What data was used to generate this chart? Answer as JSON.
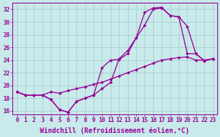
{
  "background_color": "#c8eaea",
  "grid_color": "#aacccc",
  "line_color": "#990099",
  "marker": "D",
  "markersize": 2.5,
  "linewidth": 1.0,
  "xlabel": "Windchill (Refroidissement éolien,°C)",
  "xlabel_fontsize": 7,
  "tick_fontsize": 6,
  "xlim": [
    -0.5,
    23.5
  ],
  "ylim": [
    15.5,
    33.0
  ],
  "yticks": [
    16,
    18,
    20,
    22,
    24,
    26,
    28,
    30,
    32
  ],
  "xticks": [
    0,
    1,
    2,
    3,
    4,
    5,
    6,
    7,
    8,
    9,
    10,
    11,
    12,
    13,
    14,
    15,
    16,
    17,
    18,
    19,
    20,
    21,
    22,
    23
  ],
  "line1_x": [
    0,
    1,
    2,
    3,
    4,
    5,
    6,
    7,
    8,
    9,
    10,
    11,
    12,
    13,
    14,
    15,
    16,
    17,
    18,
    19,
    20,
    21,
    22,
    23
  ],
  "line1_y": [
    19.0,
    18.5,
    18.5,
    18.5,
    19.0,
    18.8,
    19.2,
    19.5,
    19.8,
    20.2,
    20.5,
    21.0,
    21.5,
    22.0,
    22.5,
    23.0,
    23.5,
    24.0,
    24.2,
    24.4,
    24.5,
    24.0,
    24.0,
    24.2
  ],
  "line2_x": [
    0,
    1,
    2,
    3,
    4,
    5,
    6,
    7,
    8,
    9,
    10,
    11,
    12,
    13,
    14,
    15,
    16,
    17,
    18,
    19,
    20,
    21,
    22,
    23
  ],
  "line2_y": [
    19.0,
    18.5,
    18.5,
    18.5,
    17.8,
    16.2,
    15.8,
    17.5,
    18.0,
    18.5,
    19.5,
    20.5,
    24.2,
    25.5,
    27.5,
    29.5,
    32.0,
    32.2,
    31.0,
    30.8,
    25.0,
    25.0,
    23.9,
    24.2
  ],
  "line3_x": [
    0,
    1,
    2,
    3,
    4,
    5,
    6,
    7,
    8,
    9,
    10,
    11,
    12,
    13,
    14,
    15,
    16,
    17,
    18,
    19,
    20,
    21,
    22,
    23
  ],
  "line3_y": [
    19.0,
    18.5,
    18.5,
    18.5,
    17.8,
    16.2,
    15.8,
    17.5,
    18.0,
    18.5,
    22.8,
    24.0,
    24.1,
    25.0,
    27.5,
    31.5,
    32.2,
    32.3,
    31.0,
    30.8,
    29.3,
    25.0,
    23.9,
    24.2
  ]
}
